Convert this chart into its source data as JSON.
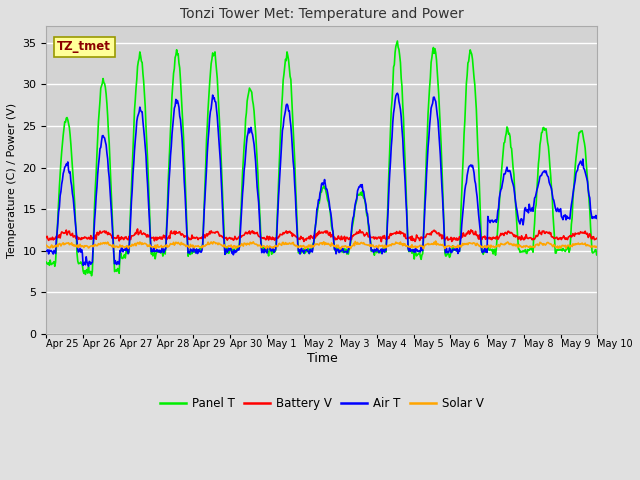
{
  "title": "Tonzi Tower Met: Temperature and Power",
  "xlabel": "Time",
  "ylabel": "Temperature (C) / Power (V)",
  "legend_label": "TZ_tmet",
  "ylim": [
    0,
    37
  ],
  "yticks": [
    0,
    5,
    10,
    15,
    20,
    25,
    30,
    35
  ],
  "date_labels": [
    "Apr 25",
    "Apr 26",
    "Apr 27",
    "Apr 28",
    "Apr 29",
    "Apr 30",
    "May 1",
    "May 2",
    "May 3",
    "May 4",
    "May 5",
    "May 6",
    "May 7",
    "May 8",
    "May 9",
    "May 10"
  ],
  "colors": {
    "panel_t": "#00EE00",
    "battery_v": "#FF0000",
    "air_t": "#0000FF",
    "solar_v": "#FFA500"
  },
  "background_color": "#E0E0E0",
  "plot_bg_color": "#D3D3D3",
  "title_color": "#333333",
  "grid_color": "#FFFFFF",
  "line_width": 1.2
}
